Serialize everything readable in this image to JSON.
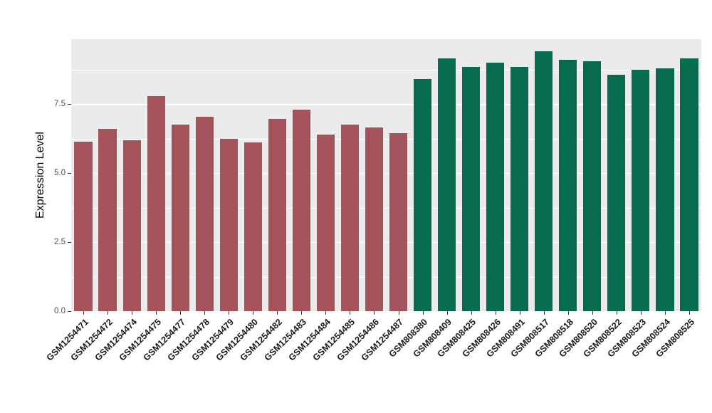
{
  "chart_data": {
    "type": "bar",
    "title": "",
    "xlabel": "",
    "ylabel": "Expression Level",
    "ylim": [
      0,
      9.85
    ],
    "y_ticks": [
      0,
      2.5,
      5,
      7.5
    ],
    "y_tick_labels": [
      "0.0",
      "2.5",
      "5.0",
      "7.5"
    ],
    "y_minor_ticks": [
      1.25,
      3.75,
      6.25,
      8.75
    ],
    "grid": "on",
    "legend": "none",
    "panel_background": "#EBEBEB",
    "grid_color": "#FFFFFF",
    "groups": {
      "group1": {
        "color": "#A5535B"
      },
      "group2": {
        "color": "#066B4F"
      }
    },
    "bars": [
      {
        "label": "GSM1254471",
        "value": 6.15,
        "group": "group1"
      },
      {
        "label": "GSM1254472",
        "value": 6.6,
        "group": "group1"
      },
      {
        "label": "GSM1254474",
        "value": 6.2,
        "group": "group1"
      },
      {
        "label": "GSM1254475",
        "value": 7.8,
        "group": "group1"
      },
      {
        "label": "GSM1254477",
        "value": 6.75,
        "group": "group1"
      },
      {
        "label": "GSM1254478",
        "value": 7.05,
        "group": "group1"
      },
      {
        "label": "GSM1254479",
        "value": 6.25,
        "group": "group1"
      },
      {
        "label": "GSM1254480",
        "value": 6.1,
        "group": "group1"
      },
      {
        "label": "GSM1254482",
        "value": 6.95,
        "group": "group1"
      },
      {
        "label": "GSM1254483",
        "value": 7.3,
        "group": "group1"
      },
      {
        "label": "GSM1254484",
        "value": 6.4,
        "group": "group1"
      },
      {
        "label": "GSM1254485",
        "value": 6.75,
        "group": "group1"
      },
      {
        "label": "GSM1254486",
        "value": 6.65,
        "group": "group1"
      },
      {
        "label": "GSM1254487",
        "value": 6.45,
        "group": "group1"
      },
      {
        "label": "GSM808380",
        "value": 8.4,
        "group": "group2"
      },
      {
        "label": "GSM808409",
        "value": 9.15,
        "group": "group2"
      },
      {
        "label": "GSM808425",
        "value": 8.85,
        "group": "group2"
      },
      {
        "label": "GSM808426",
        "value": 9.0,
        "group": "group2"
      },
      {
        "label": "GSM808491",
        "value": 8.85,
        "group": "group2"
      },
      {
        "label": "GSM808517",
        "value": 9.4,
        "group": "group2"
      },
      {
        "label": "GSM808518",
        "value": 9.1,
        "group": "group2"
      },
      {
        "label": "GSM808520",
        "value": 9.05,
        "group": "group2"
      },
      {
        "label": "GSM808522",
        "value": 8.55,
        "group": "group2"
      },
      {
        "label": "GSM808523",
        "value": 8.75,
        "group": "group2"
      },
      {
        "label": "GSM808524",
        "value": 8.8,
        "group": "group2"
      },
      {
        "label": "GSM808525",
        "value": 9.15,
        "group": "group2"
      }
    ]
  }
}
